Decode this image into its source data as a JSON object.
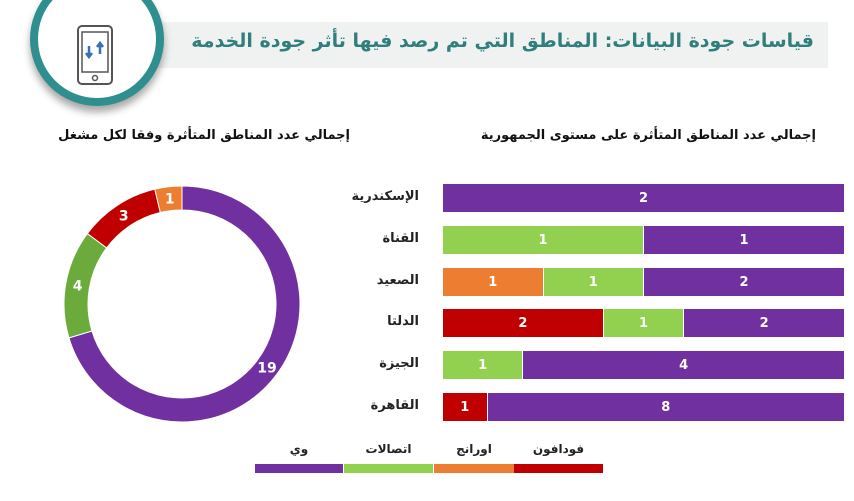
{
  "header": {
    "title": "قياسات جودة البيانات: المناطق التي تم رصد فيها تأثر جودة الخدمة",
    "icon": "mobile-data-icon"
  },
  "colors": {
    "we": "#7030a0",
    "etisalat": "#92d050",
    "etisalat_donut": "#6aab3c",
    "orange": "#ed7d31",
    "vodafone": "#c00000"
  },
  "chart_data": [
    {
      "type": "bar",
      "stacked": true,
      "normalized": true,
      "title": "إجمالي عدد المناطق المتأثرة على مستوى الجمهورية",
      "categories": [
        "الإسكندرية",
        "القناة",
        "الصعيد",
        "الدلتا",
        "الجيزة",
        "القاهرة"
      ],
      "series": [
        {
          "name": "فودافون",
          "key": "vodafone",
          "values": [
            0,
            0,
            0,
            2,
            0,
            1
          ]
        },
        {
          "name": "اورانج",
          "key": "orange",
          "values": [
            0,
            0,
            1,
            0,
            0,
            0
          ]
        },
        {
          "name": "اتصالات",
          "key": "etisalat",
          "values": [
            0,
            1,
            1,
            1,
            1,
            0
          ]
        },
        {
          "name": "وي",
          "key": "we",
          "values": [
            2,
            1,
            2,
            2,
            4,
            8
          ]
        }
      ]
    },
    {
      "type": "pie",
      "donut": true,
      "title": "إجمالي عدد المناطق المتأثرة  وفقا لكل مشغل",
      "slices": [
        {
          "name": "وي",
          "key": "we",
          "value": 19
        },
        {
          "name": "اتصالات",
          "key": "etisalat_donut",
          "value": 4
        },
        {
          "name": "فودافون",
          "key": "vodafone",
          "value": 3
        },
        {
          "name": "اورانج",
          "key": "orange",
          "value": 1
        }
      ]
    }
  ],
  "legend": [
    {
      "name": "وي",
      "key": "we"
    },
    {
      "name": "اتصالات",
      "key": "etisalat"
    },
    {
      "name": "اورانج",
      "key": "orange"
    },
    {
      "name": "فودافون",
      "key": "vodafone"
    }
  ]
}
